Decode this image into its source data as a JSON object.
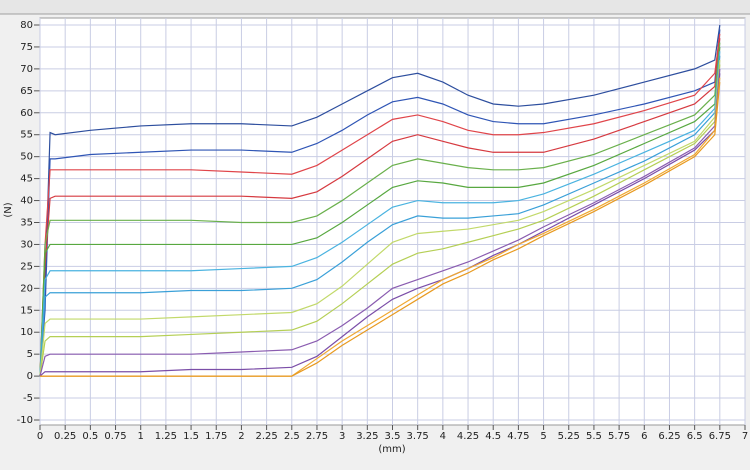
{
  "chart_data": {
    "type": "line",
    "xlabel": "(mm)",
    "ylabel": "(N)",
    "x": [
      0,
      0.05,
      0.1,
      0.15,
      0.5,
      1,
      1.5,
      2,
      2.5,
      2.75,
      3,
      3.25,
      3.5,
      3.75,
      4,
      4.25,
      4.5,
      4.75,
      5,
      5.5,
      6,
      6.5,
      6.7,
      6.75
    ],
    "series": [
      {
        "color": "#2d4e9e",
        "values": [
          0,
          20,
          55.5,
          55,
          56,
          57,
          57.5,
          57.5,
          57,
          59,
          62,
          65,
          68,
          69,
          67,
          64,
          62,
          61.5,
          62,
          64,
          67,
          70,
          72,
          80
        ]
      },
      {
        "color": "#2f55b5",
        "values": [
          0,
          15,
          49.5,
          49.5,
          50.5,
          51,
          51.5,
          51.5,
          51,
          53,
          56,
          59.5,
          62.5,
          63.5,
          62,
          59.5,
          58,
          57.5,
          57.5,
          59.5,
          62,
          65,
          67,
          79
        ]
      },
      {
        "color": "#e0454a",
        "values": [
          0,
          30,
          47,
          47,
          47,
          47,
          47,
          46.5,
          46,
          48,
          51.5,
          55,
          58.5,
          59.5,
          58,
          56,
          55,
          55,
          55.5,
          57.5,
          60.5,
          64,
          69,
          78
        ]
      },
      {
        "color": "#d63a40",
        "values": [
          0,
          25,
          40.5,
          41,
          41,
          41,
          41,
          41,
          40.5,
          42,
          45.5,
          49.5,
          53.5,
          55,
          53.5,
          52,
          51,
          51,
          51,
          54,
          58,
          62,
          66,
          77
        ]
      },
      {
        "color": "#6ab04c",
        "values": [
          0,
          30,
          35.5,
          35.5,
          35.5,
          35.5,
          35.5,
          35,
          35,
          36.5,
          40,
          44,
          48,
          49.5,
          48.5,
          47.5,
          47,
          47,
          47.5,
          50.5,
          55,
          59.5,
          64,
          76
        ]
      },
      {
        "color": "#58a840",
        "values": [
          0,
          28,
          30,
          30,
          30,
          30,
          30,
          30,
          30,
          31.5,
          35,
          39,
          43,
          44.5,
          44,
          43,
          43,
          43,
          44,
          48,
          53,
          58,
          62,
          75
        ]
      },
      {
        "color": "#4ab3e0",
        "values": [
          0,
          22,
          24,
          24,
          24,
          24,
          24,
          24.5,
          25,
          27,
          30.5,
          34.5,
          38.5,
          40,
          39.5,
          39.5,
          39.5,
          40,
          41.5,
          46,
          51,
          56,
          61,
          74
        ]
      },
      {
        "color": "#3aa0d8",
        "values": [
          0,
          18,
          19,
          19,
          19,
          19,
          19.5,
          19.5,
          20,
          22,
          26,
          30.5,
          34.5,
          36.5,
          36,
          36,
          36.5,
          37,
          39,
          44,
          49,
          55,
          60,
          73
        ]
      },
      {
        "color": "#c2d96a",
        "values": [
          0,
          12,
          13,
          13,
          13,
          13,
          13.5,
          14,
          14.5,
          16.5,
          20.5,
          25.5,
          30.5,
          32.5,
          33,
          33.5,
          34.5,
          35.5,
          37.5,
          42.5,
          48,
          53.5,
          59,
          72
        ]
      },
      {
        "color": "#b5cf55",
        "values": [
          0,
          8,
          9,
          9,
          9,
          9,
          9.5,
          10,
          10.5,
          12.5,
          16.5,
          21,
          25.5,
          28,
          29,
          30.5,
          32,
          33.5,
          35.5,
          41,
          47,
          53,
          58,
          71
        ]
      },
      {
        "color": "#8a5cb0",
        "values": [
          0,
          4.5,
          5,
          5,
          5,
          5,
          5,
          5.5,
          6,
          8,
          11.5,
          15.5,
          20,
          22,
          24,
          26,
          28.5,
          31,
          34,
          39.5,
          45.5,
          52,
          57,
          70
        ]
      },
      {
        "color": "#7b4ea8",
        "values": [
          0,
          1,
          1,
          1,
          1,
          1,
          1.5,
          1.5,
          2,
          4.5,
          9,
          13.5,
          17.5,
          20,
          22,
          24.5,
          27.5,
          30,
          33,
          39,
          45,
          51.5,
          56,
          69
        ]
      },
      {
        "color": "#f0a830",
        "values": [
          0,
          0,
          0,
          0,
          0,
          0,
          0,
          0,
          0,
          4,
          8,
          11.5,
          15,
          18.5,
          22,
          24.5,
          27,
          30,
          32.5,
          38,
          44,
          50.5,
          56,
          68
        ]
      },
      {
        "color": "#e89a20",
        "values": [
          0,
          0,
          0,
          0,
          0,
          0,
          0,
          0,
          0,
          3,
          7,
          10.5,
          14,
          17.5,
          21,
          23.5,
          26.5,
          29,
          32,
          37.5,
          43.5,
          50,
          55,
          67
        ]
      }
    ],
    "xlim": [
      0,
      7
    ],
    "xticks": [
      0,
      0.25,
      0.5,
      0.75,
      1,
      1.25,
      1.5,
      1.75,
      2,
      2.25,
      2.5,
      2.75,
      3,
      3.25,
      3.5,
      3.75,
      4,
      4.25,
      4.5,
      4.75,
      5,
      5.25,
      5.5,
      5.75,
      6,
      6.25,
      6.5,
      6.75,
      7
    ],
    "ylim": [
      -10,
      80
    ],
    "yticks": [
      -10,
      -5,
      0,
      5,
      10,
      15,
      20,
      25,
      30,
      35,
      40,
      45,
      50,
      55,
      60,
      65,
      70,
      75,
      80
    ],
    "grid": true
  }
}
